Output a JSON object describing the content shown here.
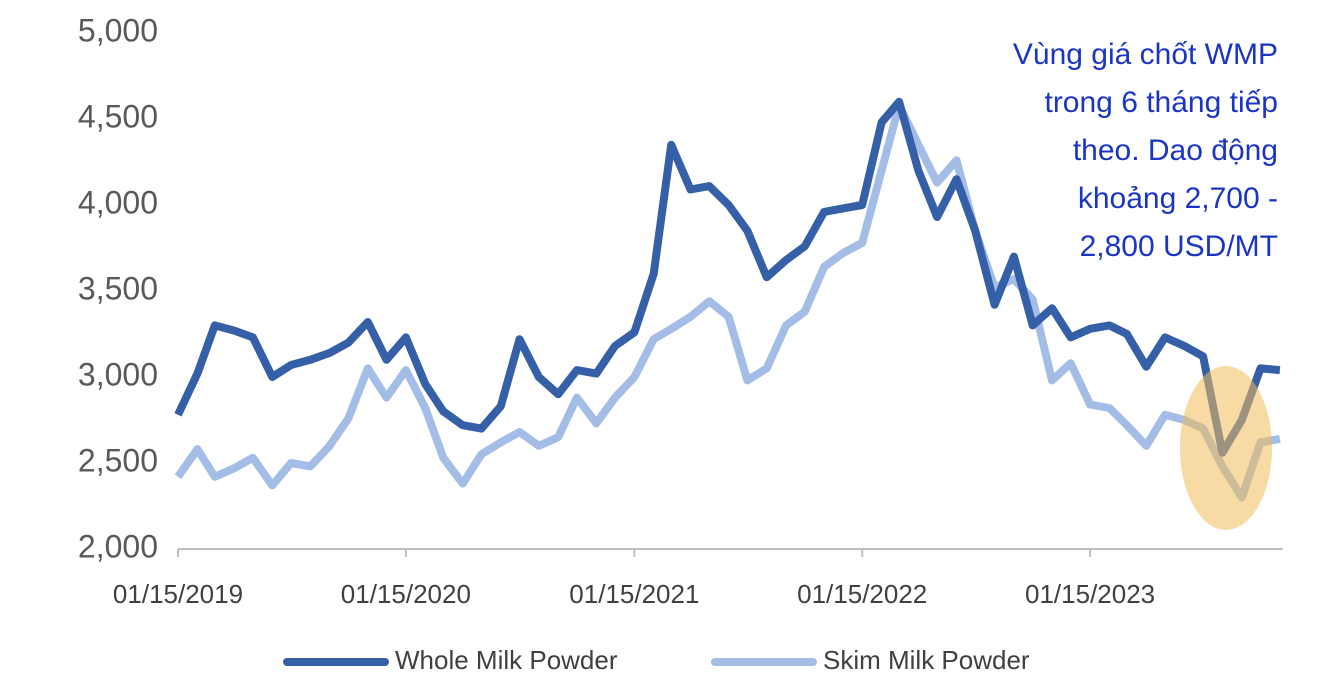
{
  "chart_data": {
    "type": "line",
    "annotation": [
      "Vùng giá chốt WMP",
      "trong 6 tháng tiếp",
      "theo. Dao động",
      "khoảng 2,700 -",
      "2,800 USD/MT"
    ],
    "x": [
      "01/15/2019",
      "02/15/2019",
      "03/15/2019",
      "04/15/2019",
      "05/15/2019",
      "06/15/2019",
      "07/15/2019",
      "08/15/2019",
      "09/15/2019",
      "10/15/2019",
      "11/15/2019",
      "12/15/2019",
      "01/15/2020",
      "02/15/2020",
      "03/15/2020",
      "04/15/2020",
      "05/15/2020",
      "06/15/2020",
      "07/15/2020",
      "08/15/2020",
      "09/15/2020",
      "10/15/2020",
      "11/15/2020",
      "12/15/2020",
      "01/15/2021",
      "02/15/2021",
      "03/15/2021",
      "04/15/2021",
      "05/15/2021",
      "06/15/2021",
      "07/15/2021",
      "08/15/2021",
      "09/15/2021",
      "10/15/2021",
      "11/15/2021",
      "12/15/2021",
      "01/15/2022",
      "02/15/2022",
      "03/15/2022",
      "04/15/2022",
      "05/15/2022",
      "06/15/2022",
      "07/15/2022",
      "08/15/2022",
      "09/15/2022",
      "10/15/2022",
      "11/15/2022",
      "12/15/2022",
      "01/15/2023",
      "02/15/2023",
      "03/15/2023",
      "04/15/2023",
      "05/15/2023",
      "06/15/2023",
      "07/15/2023",
      "08/15/2023",
      "09/15/2023",
      "10/15/2023",
      "11/15/2023"
    ],
    "series": [
      {
        "name": "Whole Milk Powder",
        "color": "#3560a8",
        "values": [
          2780,
          3020,
          3300,
          3270,
          3230,
          3000,
          3070,
          3100,
          3140,
          3200,
          3320,
          3100,
          3230,
          2960,
          2800,
          2720,
          2700,
          2830,
          3220,
          3000,
          2900,
          3040,
          3020,
          3180,
          3260,
          3600,
          4350,
          4090,
          4110,
          4000,
          3850,
          3580,
          3680,
          3760,
          3960,
          3980,
          4000,
          4480,
          4600,
          4200,
          3930,
          4150,
          3850,
          3420,
          3700,
          3300,
          3400,
          3230,
          3280,
          3300,
          3250,
          3060,
          3230,
          3180,
          3120,
          2560,
          2750,
          3050,
          3040
        ]
      },
      {
        "name": "Skim Milk Powder",
        "color": "#a3bde6",
        "values": [
          2420,
          2580,
          2420,
          2470,
          2530,
          2370,
          2500,
          2480,
          2600,
          2760,
          3050,
          2880,
          3040,
          2820,
          2530,
          2380,
          2550,
          2620,
          2680,
          2600,
          2650,
          2880,
          2730,
          2880,
          3000,
          3220,
          3280,
          3350,
          3440,
          3350,
          2980,
          3050,
          3300,
          3380,
          3640,
          3720,
          3780,
          4200,
          4580,
          4350,
          4130,
          4260,
          3850,
          3520,
          3570,
          3450,
          2980,
          3080,
          2840,
          2820,
          2720,
          2600,
          2780,
          2750,
          2700,
          2480,
          2300,
          2620,
          2640
        ]
      }
    ],
    "xlim": [
      "01/15/2019",
      "11/20/2023"
    ],
    "xticks": [
      "01/15/2019",
      "01/15/2020",
      "01/15/2021",
      "01/15/2022",
      "01/15/2023"
    ],
    "ylim": [
      2000,
      5000
    ],
    "yticks": [
      {
        "value": 2000,
        "label": "2,000"
      },
      {
        "value": 2500,
        "label": "2,500"
      },
      {
        "value": 3000,
        "label": "3,000"
      },
      {
        "value": 3500,
        "label": "3,500"
      },
      {
        "value": 4000,
        "label": "4,000"
      },
      {
        "value": 4500,
        "label": "4,500"
      },
      {
        "value": 5000,
        "label": "5,000"
      }
    ],
    "legend": "bottom"
  }
}
